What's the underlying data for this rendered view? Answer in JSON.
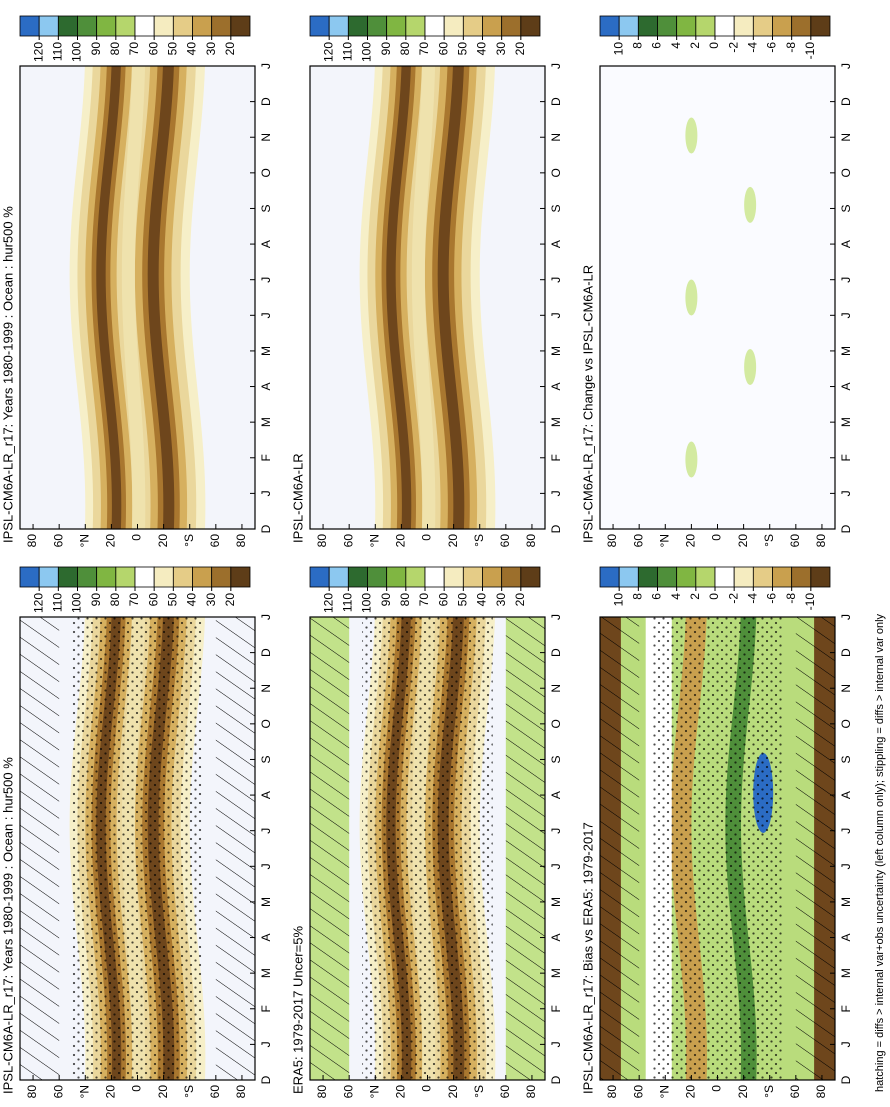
{
  "panels": [
    {
      "title": "IPSL-CM6A-LR_r17: Years 1980-1999 : Ocean : hur500 %",
      "colorbar": 0
    },
    {
      "title": "IPSL-CM6A-LR_r17: Years 1980-1999 : Ocean : hur500 %",
      "colorbar": 0
    },
    {
      "title": "ERA5: 1979-2017 Uncer=5%",
      "colorbar": 0
    },
    {
      "title": "IPSL-CM6A-LR",
      "colorbar": 0
    },
    {
      "title": "IPSL-CM6A-LR_r17: Bias vs ERA5: 1979-2017",
      "colorbar": 1
    },
    {
      "title": "IPSL-CM6A-LR_r17: Change vs IPSL-CM6A-LR",
      "colorbar": 1
    }
  ],
  "months": [
    "D",
    "J",
    "F",
    "M",
    "A",
    "M",
    "J",
    "J",
    "A",
    "S",
    "O",
    "N",
    "D",
    "J"
  ],
  "ylim": [
    -90,
    90
  ],
  "yticks": [
    80,
    60,
    {
      "value": 40,
      "label": "°N"
    },
    20,
    0,
    {
      "value": -20,
      "label": "20"
    },
    {
      "value": -40,
      "label": "°S"
    },
    {
      "value": -60,
      "label": "60"
    },
    {
      "value": -80,
      "label": "80"
    }
  ],
  "colorbars": [
    {
      "ticks": [
        120,
        110,
        100,
        90,
        80,
        70,
        60,
        50,
        40,
        30,
        20
      ],
      "colors": [
        "#2b6cc4",
        "#8cc8f0",
        "#2d6a2f",
        "#4f8f3a",
        "#80b642",
        "#b5d66c",
        "#ffffff",
        "#f5ecc0",
        "#e5cc87",
        "#c9a04e",
        "#9c6f2c",
        "#5e3d18"
      ]
    },
    {
      "ticks": [
        10,
        8,
        6,
        4,
        2,
        0,
        -2,
        -4,
        -6,
        -8,
        -10
      ],
      "colors": [
        "#2b6cc4",
        "#8cc8f0",
        "#2d6a2f",
        "#4f8f3a",
        "#80b642",
        "#b5d66c",
        "#ffffff",
        "#f5ecc0",
        "#e5cc87",
        "#c9a04e",
        "#9c6f2c",
        "#5e3d18"
      ]
    }
  ],
  "footnote": "hatching = diffs > internal var+obs uncertainty (left column only); stippling = diffs > internal var only"
}
